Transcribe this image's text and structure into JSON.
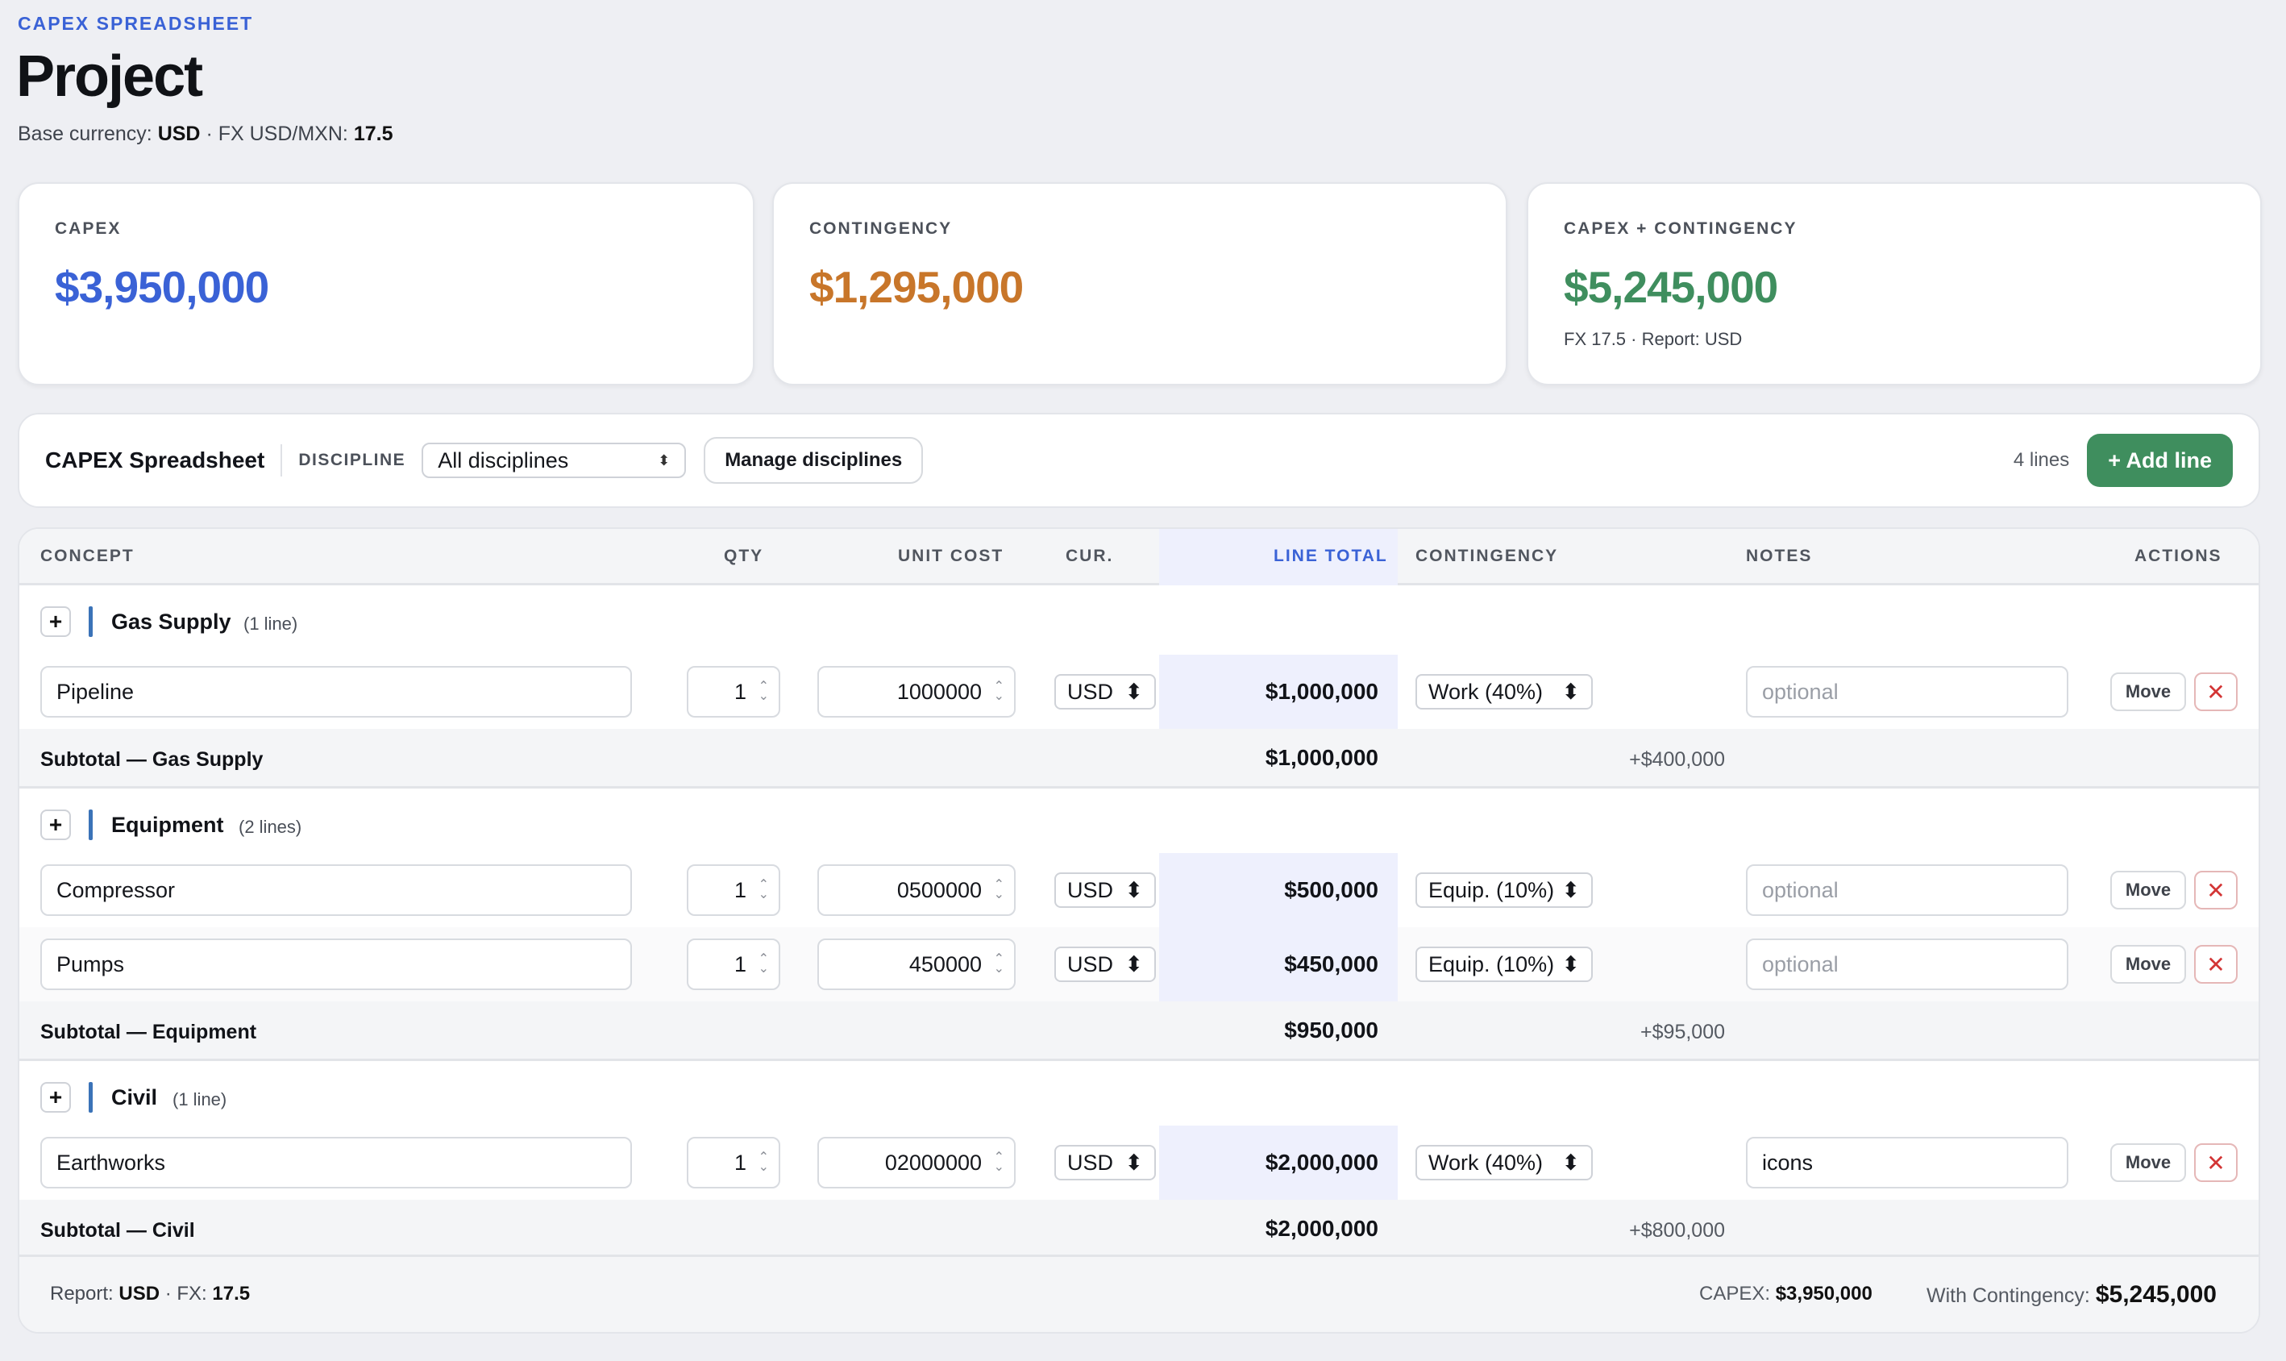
{
  "header": {
    "eyebrow": "CAPEX SPREADSHEET",
    "title": "Project",
    "base_currency_label": "Base currency:",
    "base_currency": "USD",
    "fx_label": "· FX USD/MXN:",
    "fx_value": "17.5"
  },
  "kpis": {
    "capex": {
      "label": "CAPEX",
      "value": "$3,950,000",
      "color": "#3a62d6"
    },
    "contingency": {
      "label": "CONTINGENCY",
      "value": "$1,295,000",
      "color": "#c8762a"
    },
    "total": {
      "label": "CAPEX + CONTINGENCY",
      "value": "$5,245,000",
      "note": "FX 17.5 · Report: USD",
      "color": "#3f8e5e"
    }
  },
  "toolbar": {
    "title": "CAPEX Spreadsheet",
    "discipline_label": "DISCIPLINE",
    "discipline_value": "All disciplines",
    "manage_label": "Manage disciplines",
    "line_count": "4 lines",
    "add_line_label": "+ Add line"
  },
  "columns": {
    "concept": "CONCEPT",
    "qty": "QTY",
    "unit_cost": "UNIT COST",
    "cur": "CUR.",
    "line_total": "LINE TOTAL",
    "contingency": "CONTINGENCY",
    "notes": "NOTES",
    "actions": "ACTIONS"
  },
  "groups": [
    {
      "name": "Gas Supply",
      "count": "(1 line)",
      "lines": [
        {
          "concept": "Pipeline",
          "qty": "1",
          "unit_cost": "1000000",
          "currency": "USD",
          "line_total": "$1,000,000",
          "contingency": "Work (40%)",
          "notes": "",
          "notes_placeholder": "optional"
        }
      ],
      "subtotal_label": "Subtotal — Gas Supply",
      "subtotal": "$1,000,000",
      "subtotal_contingency": "+$400,000"
    },
    {
      "name": "Equipment",
      "count": "(2 lines)",
      "lines": [
        {
          "concept": "Compressor",
          "qty": "1",
          "unit_cost": "0500000",
          "currency": "USD",
          "line_total": "$500,000",
          "contingency": "Equip. (10%)",
          "notes": "",
          "notes_placeholder": "optional"
        },
        {
          "concept": "Pumps",
          "qty": "1",
          "unit_cost": "450000",
          "currency": "USD",
          "line_total": "$450,000",
          "contingency": "Equip. (10%)",
          "notes": "",
          "notes_placeholder": "optional"
        }
      ],
      "subtotal_label": "Subtotal — Equipment",
      "subtotal": "$950,000",
      "subtotal_contingency": "+$95,000"
    },
    {
      "name": "Civil",
      "count": "(1 line)",
      "lines": [
        {
          "concept": "Earthworks",
          "qty": "1",
          "unit_cost": "02000000",
          "currency": "USD",
          "line_total": "$2,000,000",
          "contingency": "Work (40%)",
          "notes": "icons",
          "notes_placeholder": "optional"
        }
      ],
      "subtotal_label": "Subtotal — Civil",
      "subtotal": "$2,000,000",
      "subtotal_contingency": "+$800,000"
    }
  ],
  "actions": {
    "move_label": "Move",
    "delete_glyph": "✕"
  },
  "footer": {
    "report_label": "Report:",
    "report_value": "USD",
    "fx_label": "· FX:",
    "fx_value": "17.5",
    "capex_label": "CAPEX:",
    "capex_value": "$3,950,000",
    "with_cont_label": "With Contingency:",
    "with_cont_value": "$5,245,000"
  }
}
